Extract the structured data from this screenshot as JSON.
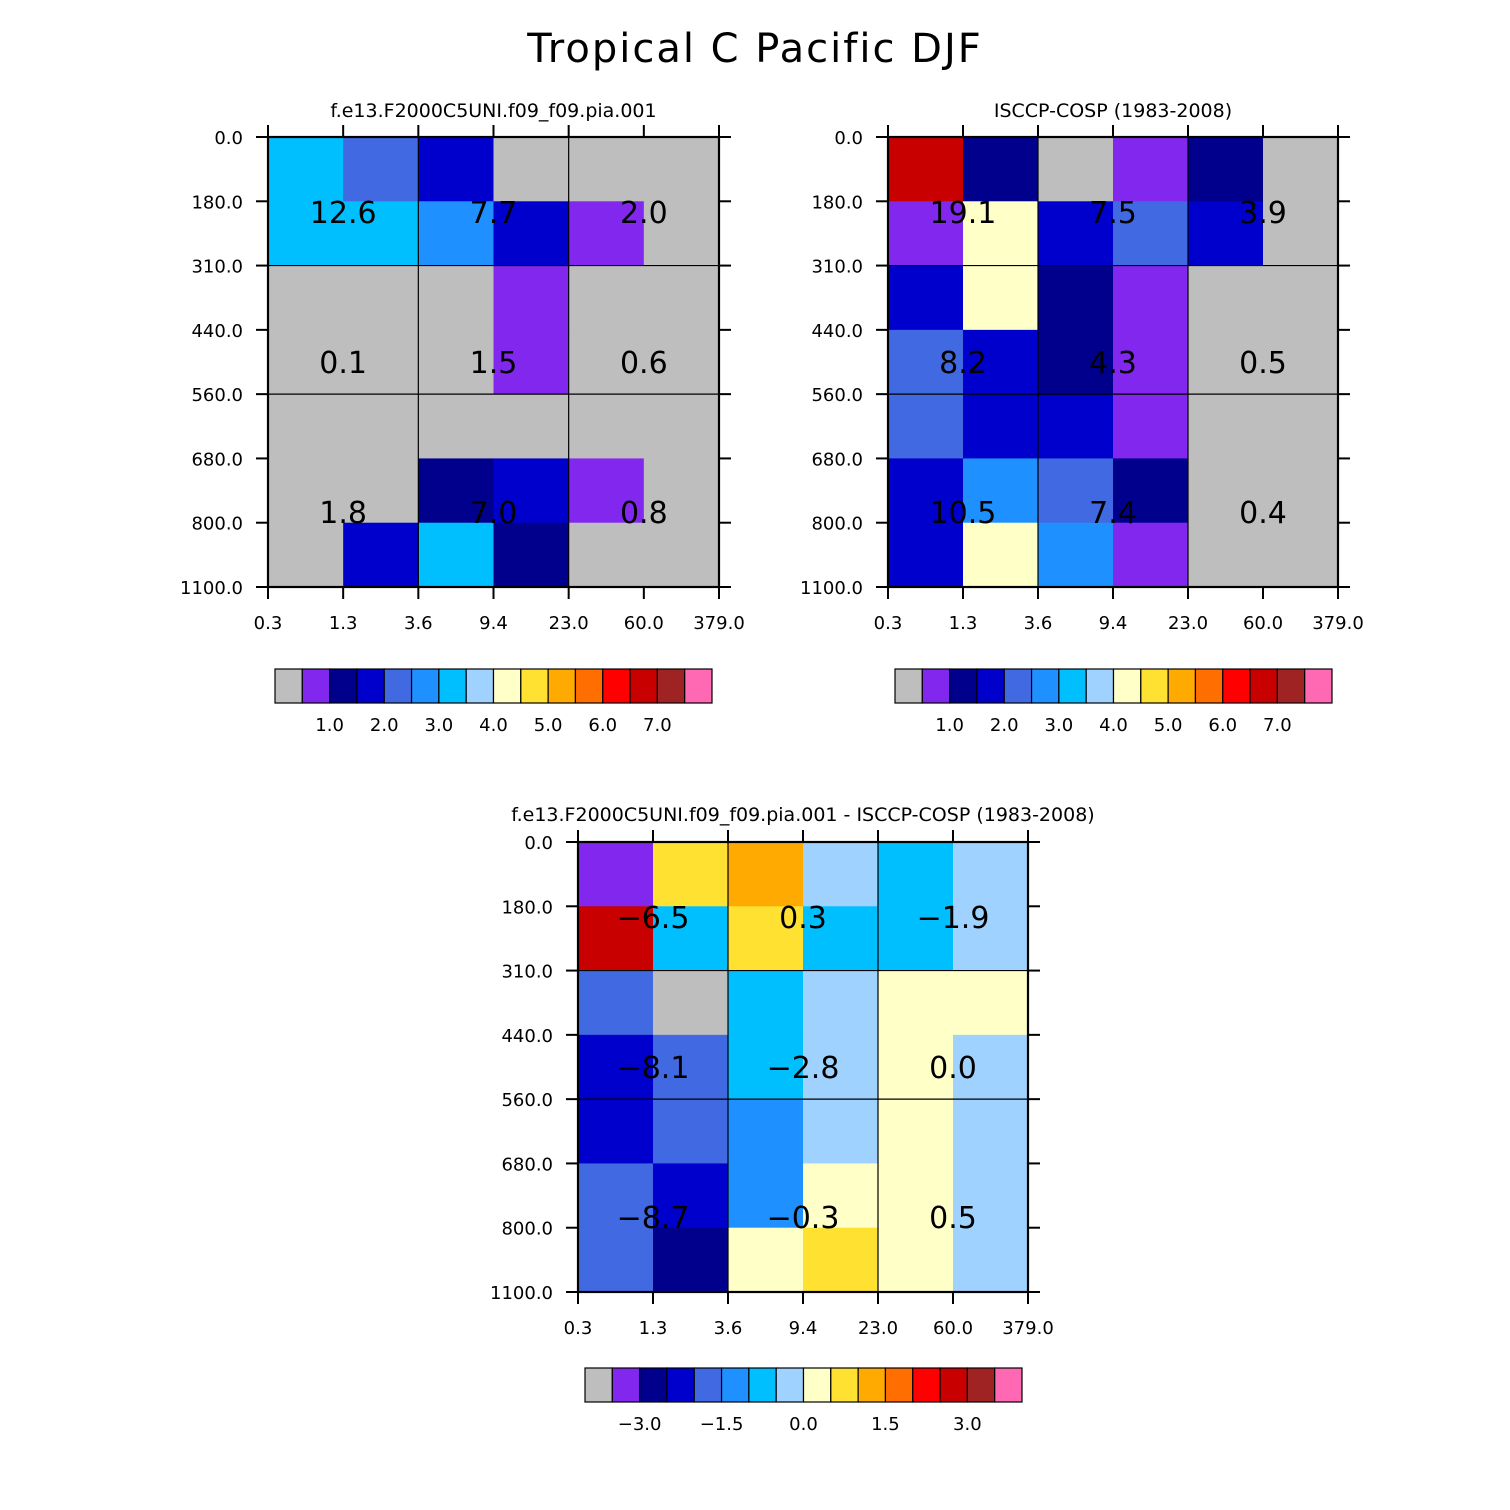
{
  "title": "Tropical C Pacific DJF",
  "palette_full": [
    "#BEBEBE",
    "#8228EE",
    "#00008C",
    "#0000CC",
    "#4169E1",
    "#1E90FF",
    "#00BFFF",
    "#A0D2FF",
    "#FFFFC8",
    "#FFE132",
    "#FFAA00",
    "#FF6E00",
    "#FF0000",
    "#C80000",
    "#A02323",
    "#FF69B4"
  ],
  "chart_data": [
    {
      "type": "heatmap",
      "title": "f.e13.F2000C5UNI.f09_f09.pia.001",
      "xticks": [
        "0.3",
        "1.3",
        "3.6",
        "9.4",
        "23.0",
        "60.0",
        "379.0"
      ],
      "yticks": [
        "0.0",
        "180.0",
        "310.0",
        "440.0",
        "560.0",
        "680.0",
        "800.0",
        "1100.0"
      ],
      "cell_color_index": [
        [
          6,
          4,
          3,
          0,
          0,
          0
        ],
        [
          6,
          6,
          5,
          3,
          1,
          0
        ],
        [
          0,
          0,
          0,
          1,
          0,
          0
        ],
        [
          0,
          0,
          0,
          1,
          0,
          0
        ],
        [
          0,
          0,
          0,
          0,
          0,
          0
        ],
        [
          0,
          0,
          2,
          3,
          1,
          0
        ],
        [
          0,
          3,
          6,
          2,
          0,
          0
        ]
      ],
      "annotations": [
        {
          "value": "12.6",
          "col": 0,
          "row": 0
        },
        {
          "value": "7.7",
          "col": 1,
          "row": 0
        },
        {
          "value": "2.0",
          "col": 2,
          "row": 0
        },
        {
          "value": "0.1",
          "col": 0,
          "row": 1
        },
        {
          "value": "1.5",
          "col": 1,
          "row": 1
        },
        {
          "value": "0.6",
          "col": 2,
          "row": 1
        },
        {
          "value": "1.8",
          "col": 0,
          "row": 2
        },
        {
          "value": "7.0",
          "col": 1,
          "row": 2
        },
        {
          "value": "0.8",
          "col": 2,
          "row": 2
        }
      ],
      "colorbar_labels": [
        "1.0",
        "2.0",
        "3.0",
        "4.0",
        "5.0",
        "6.0",
        "7.0"
      ]
    },
    {
      "type": "heatmap",
      "title": "ISCCP-COSP (1983-2008)",
      "xticks": [
        "0.3",
        "1.3",
        "3.6",
        "9.4",
        "23.0",
        "60.0",
        "379.0"
      ],
      "yticks": [
        "0.0",
        "180.0",
        "310.0",
        "440.0",
        "560.0",
        "680.0",
        "800.0",
        "1100.0"
      ],
      "cell_color_index": [
        [
          13,
          2,
          0,
          1,
          2,
          0
        ],
        [
          1,
          8,
          3,
          4,
          3,
          0
        ],
        [
          3,
          8,
          2,
          1,
          0,
          0
        ],
        [
          4,
          3,
          2,
          1,
          0,
          0
        ],
        [
          4,
          3,
          3,
          1,
          0,
          0
        ],
        [
          3,
          5,
          4,
          2,
          0,
          0
        ],
        [
          3,
          8,
          5,
          1,
          0,
          0
        ]
      ],
      "annotations": [
        {
          "value": "19.1",
          "col": 0,
          "row": 0
        },
        {
          "value": "7.5",
          "col": 1,
          "row": 0
        },
        {
          "value": "3.9",
          "col": 2,
          "row": 0
        },
        {
          "value": "8.2",
          "col": 0,
          "row": 1
        },
        {
          "value": "4.3",
          "col": 1,
          "row": 1
        },
        {
          "value": "0.5",
          "col": 2,
          "row": 1
        },
        {
          "value": "10.5",
          "col": 0,
          "row": 2
        },
        {
          "value": "7.4",
          "col": 1,
          "row": 2
        },
        {
          "value": "0.4",
          "col": 2,
          "row": 2
        }
      ],
      "colorbar_labels": [
        "1.0",
        "2.0",
        "3.0",
        "4.0",
        "5.0",
        "6.0",
        "7.0"
      ]
    },
    {
      "type": "heatmap",
      "title": "f.e13.F2000C5UNI.f09_f09.pia.001 - ISCCP-COSP (1983-2008)",
      "xticks": [
        "0.3",
        "1.3",
        "3.6",
        "9.4",
        "23.0",
        "60.0",
        "379.0"
      ],
      "yticks": [
        "0.0",
        "180.0",
        "310.0",
        "440.0",
        "560.0",
        "680.0",
        "800.0",
        "1100.0"
      ],
      "cell_color_index": [
        [
          1,
          9,
          10,
          7,
          6,
          7
        ],
        [
          13,
          6,
          9,
          6,
          6,
          7
        ],
        [
          4,
          0,
          6,
          7,
          8,
          8
        ],
        [
          3,
          4,
          6,
          7,
          8,
          7
        ],
        [
          3,
          4,
          5,
          7,
          8,
          7
        ],
        [
          4,
          3,
          5,
          8,
          8,
          7
        ],
        [
          4,
          2,
          8,
          9,
          8,
          7
        ]
      ],
      "annotations": [
        {
          "value": "-6.5",
          "col": 0,
          "row": 0
        },
        {
          "value": "0.3",
          "col": 1,
          "row": 0
        },
        {
          "value": "-1.9",
          "col": 2,
          "row": 0
        },
        {
          "value": "-8.1",
          "col": 0,
          "row": 1
        },
        {
          "value": "-2.8",
          "col": 1,
          "row": 1
        },
        {
          "value": "0.0",
          "col": 2,
          "row": 1
        },
        {
          "value": "-8.7",
          "col": 0,
          "row": 2
        },
        {
          "value": "-0.3",
          "col": 1,
          "row": 2
        },
        {
          "value": "0.5",
          "col": 2,
          "row": 2
        }
      ],
      "colorbar_labels": [
        "-3.0",
        "-1.5",
        "0.0",
        "1.5",
        "3.0"
      ]
    }
  ]
}
